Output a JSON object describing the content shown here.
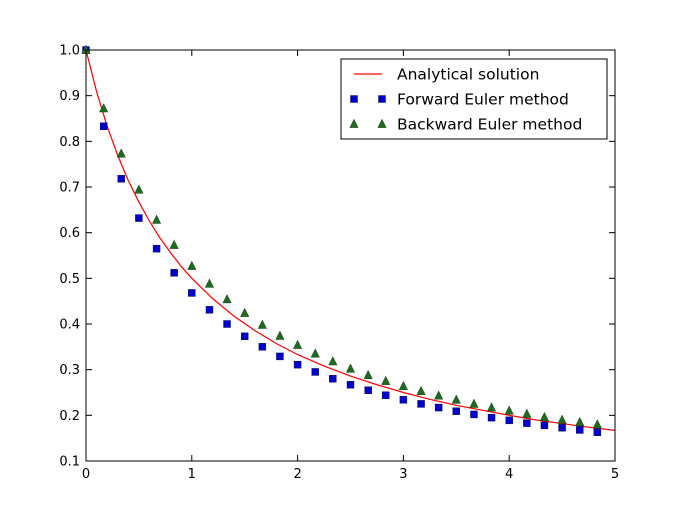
{
  "chart_data": {
    "type": "line",
    "title": "",
    "xlabel": "",
    "ylabel": "",
    "xlim": [
      0,
      5
    ],
    "ylim": [
      0.1,
      1.0
    ],
    "x_ticks": [
      "0",
      "1",
      "2",
      "3",
      "4",
      "5"
    ],
    "y_ticks": [
      "0.1",
      "0.2",
      "0.3",
      "0.4",
      "0.5",
      "0.6",
      "0.7",
      "0.8",
      "0.9",
      "1.0"
    ],
    "grid": false,
    "legend_position": "top-right",
    "series": [
      {
        "name": "Analytical solution",
        "style": "line",
        "color": "#ff0000",
        "x": [
          0,
          0.1,
          0.2,
          0.3,
          0.4,
          0.5,
          0.6,
          0.7,
          0.8,
          0.9,
          1.0,
          1.2,
          1.4,
          1.6,
          1.8,
          2.0,
          2.25,
          2.5,
          2.75,
          3.0,
          3.25,
          3.5,
          3.75,
          4.0,
          4.25,
          4.5,
          4.75,
          5.0
        ],
        "y": [
          1.0,
          0.909,
          0.833,
          0.769,
          0.714,
          0.667,
          0.625,
          0.588,
          0.556,
          0.526,
          0.5,
          0.455,
          0.417,
          0.385,
          0.357,
          0.333,
          0.308,
          0.286,
          0.267,
          0.25,
          0.235,
          0.222,
          0.211,
          0.2,
          0.19,
          0.182,
          0.174,
          0.167
        ]
      },
      {
        "name": "Forward Euler method",
        "style": "square",
        "color": "#0000cc",
        "x": [
          0,
          0.167,
          0.333,
          0.5,
          0.667,
          0.833,
          1.0,
          1.167,
          1.333,
          1.5,
          1.667,
          1.833,
          2.0,
          2.167,
          2.333,
          2.5,
          2.667,
          2.833,
          3.0,
          3.167,
          3.333,
          3.5,
          3.667,
          3.833,
          4.0,
          4.167,
          4.333,
          4.5,
          4.667,
          4.833
        ],
        "y": [
          1.0,
          0.833,
          0.718,
          0.632,
          0.565,
          0.512,
          0.468,
          0.431,
          0.4,
          0.373,
          0.35,
          0.329,
          0.311,
          0.295,
          0.28,
          0.267,
          0.255,
          0.244,
          0.234,
          0.225,
          0.217,
          0.209,
          0.202,
          0.195,
          0.189,
          0.183,
          0.178,
          0.173,
          0.168,
          0.163
        ]
      },
      {
        "name": "Backward Euler method",
        "style": "triangle",
        "color": "#1f6b1f",
        "x": [
          0,
          0.167,
          0.333,
          0.5,
          0.667,
          0.833,
          1.0,
          1.167,
          1.333,
          1.5,
          1.667,
          1.833,
          2.0,
          2.167,
          2.333,
          2.5,
          2.667,
          2.833,
          3.0,
          3.167,
          3.333,
          3.5,
          3.667,
          3.833,
          4.0,
          4.167,
          4.333,
          4.5,
          4.667,
          4.833
        ],
        "y": [
          1.0,
          0.872,
          0.773,
          0.694,
          0.628,
          0.573,
          0.527,
          0.488,
          0.454,
          0.424,
          0.398,
          0.374,
          0.354,
          0.335,
          0.318,
          0.302,
          0.288,
          0.275,
          0.264,
          0.253,
          0.243,
          0.234,
          0.225,
          0.217,
          0.21,
          0.203,
          0.196,
          0.19,
          0.185,
          0.18
        ]
      }
    ]
  }
}
